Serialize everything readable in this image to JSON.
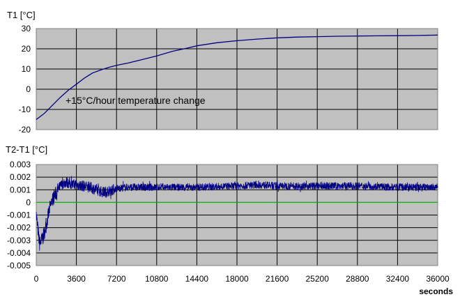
{
  "chart_data": [
    {
      "type": "line",
      "ylabel": "T1 [°C]",
      "ylim": [
        -20,
        30
      ],
      "yticks": [
        30,
        20,
        10,
        0,
        -10,
        -20
      ],
      "xlim": [
        0,
        36000
      ],
      "plot_bg": "#c0c0c0",
      "grid": true,
      "annotation": "+15°C/hour temperature change",
      "series": [
        {
          "color": "#000080",
          "x": [
            0,
            720,
            1440,
            2160,
            2880,
            3600,
            4320,
            5040,
            5760,
            6480,
            7200,
            8280,
            9360,
            10800,
            12240,
            13680,
            14400,
            16200,
            18000,
            19800,
            21600,
            23400,
            25200,
            27000,
            28800,
            30600,
            32400,
            34200,
            36000
          ],
          "y": [
            -15,
            -12,
            -8,
            -4,
            -0.5,
            2.5,
            5.5,
            8,
            9.5,
            10.8,
            11.8,
            13,
            14.5,
            16.5,
            18.8,
            20.5,
            21.5,
            23,
            24,
            24.8,
            25.4,
            25.8,
            26,
            26.2,
            26.3,
            26.4,
            26.5,
            26.6,
            26.8
          ]
        }
      ]
    },
    {
      "type": "line",
      "ylabel": "T2-T1 [°C]",
      "ylim": [
        -0.005,
        0.003
      ],
      "yticks": [
        0.003,
        0.002,
        0.001,
        0,
        -0.001,
        -0.002,
        -0.003,
        -0.004,
        -0.005
      ],
      "ytick_labels": [
        "0.003",
        "0.002",
        "0.001",
        "0",
        "-0.001",
        "-0.002",
        "-0.003",
        "-0.004",
        "-0.005"
      ],
      "xlim": [
        0,
        36000
      ],
      "xticks": [
        0,
        3600,
        7200,
        10800,
        14400,
        18000,
        21600,
        25200,
        28800,
        32400,
        36000
      ],
      "xtick_labels": [
        "0",
        "3600",
        "7200",
        "10800",
        "14400",
        "18000",
        "21600",
        "25200",
        "28800",
        "32400",
        "36000"
      ],
      "xunit": "seconds",
      "plot_bg": "#c0c0c0",
      "grid": true,
      "zero_line_color": "#00cc00",
      "series": [
        {
          "color": "#000080",
          "noisy": true,
          "x": [
            0,
            300,
            600,
            900,
            1200,
            1500,
            1800,
            2100,
            2400,
            2700,
            3000,
            3300,
            3600,
            4200,
            4800,
            5400,
            6000,
            6600,
            7200,
            8100,
            9000,
            10800,
            14400,
            18000,
            19800,
            21600,
            25200,
            28800,
            32400,
            36000
          ],
          "y": [
            -0.001,
            -0.0033,
            -0.0028,
            -0.0018,
            -0.0005,
            0.0003,
            0.0008,
            0.0012,
            0.0015,
            0.0016,
            0.0015,
            0.0014,
            0.0014,
            0.0013,
            0.0012,
            0.001,
            0.0008,
            0.0009,
            0.0011,
            0.0012,
            0.0012,
            0.0012,
            0.0012,
            0.0013,
            0.0014,
            0.0013,
            0.0013,
            0.0013,
            0.0012,
            0.0012
          ]
        }
      ]
    }
  ]
}
